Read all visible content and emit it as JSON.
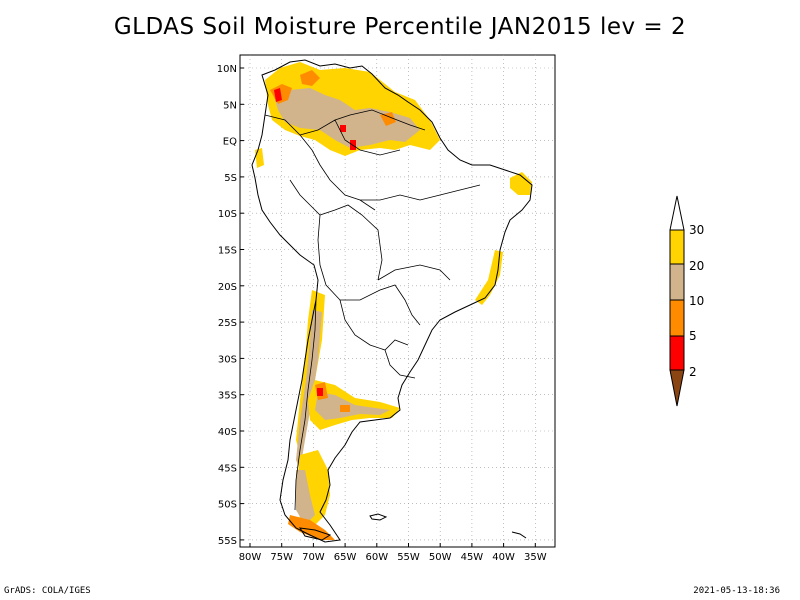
{
  "title": "GLDAS Soil Moisture Percentile JAN2015 lev = 2",
  "map": {
    "lat_labels": [
      "10N",
      "5N",
      "EQ",
      "5S",
      "10S",
      "15S",
      "20S",
      "25S",
      "30S",
      "35S",
      "40S",
      "45S",
      "50S",
      "55S"
    ],
    "lon_labels": [
      "80W",
      "75W",
      "70W",
      "65W",
      "60W",
      "55W",
      "50W",
      "45W",
      "40W",
      "35W"
    ],
    "region": "South America",
    "gridlines": true
  },
  "colorbar": {
    "labels": [
      "30",
      "20",
      "10",
      "5",
      "2"
    ],
    "colors": {
      "above_30": "#ffffff",
      "20_30": "#ffd400",
      "10_20": "#d2b48c",
      "5_10": "#ff8c00",
      "2_5": "#ff0000",
      "below_2": "#8b4513"
    }
  },
  "footer": {
    "left": "GrADS: COLA/IGES",
    "right": "2021-05-13-18:36"
  }
}
